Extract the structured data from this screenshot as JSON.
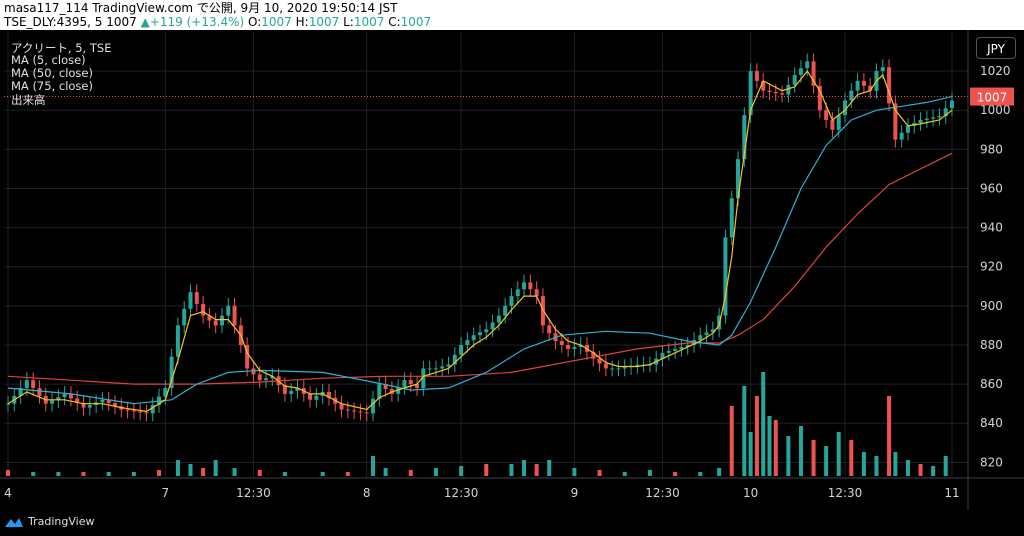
{
  "header": {
    "line1": "masa117_114 TradingView.com で公開, 9月 10, 2020 19:50:14 JST",
    "ticker": "TSE_DLY:4395, 5 1007",
    "change": "▲+119 (+13.4%)",
    "o_label": "O:",
    "o_val": "1007",
    "h_label": "H:",
    "h_val": "1007",
    "l_label": "L:",
    "l_val": "1007",
    "c_label": "C:",
    "c_val": "1007"
  },
  "overlay": {
    "title": "アクリート, 5, TSE",
    "ma5": "MA (5, close)",
    "ma50": "MA (50, close)",
    "ma75": "MA (75, close)",
    "volume": "出来高"
  },
  "currency_button": "JPY",
  "footer": {
    "brand": "TradingView"
  },
  "colors": {
    "up": "#26a69a",
    "down": "#ef5350",
    "ma5": "#f5c518",
    "ma50": "#2bb3d6",
    "ma75": "#e0433a",
    "grid": "#1e2129"
  },
  "chart_data": {
    "type": "candlestick",
    "interval": "5 min",
    "yrange": [
      812,
      1040
    ],
    "y_ticks": [
      820,
      840,
      860,
      880,
      900,
      920,
      940,
      960,
      980,
      1000,
      1020
    ],
    "x_ticks": [
      "4",
      "7",
      "12:30",
      "8",
      "12:30",
      "9",
      "12:30",
      "10",
      "12:30",
      "11"
    ],
    "last_price": "1007",
    "last_price_value": 1007,
    "price_path": [
      [
        0,
        850
      ],
      [
        3,
        862
      ],
      [
        6,
        850
      ],
      [
        9,
        855
      ],
      [
        12,
        848
      ],
      [
        15,
        852
      ],
      [
        18,
        847
      ],
      [
        22,
        845
      ],
      [
        25,
        858
      ],
      [
        27,
        890
      ],
      [
        29,
        907
      ],
      [
        31,
        895
      ],
      [
        33,
        890
      ],
      [
        35,
        900
      ],
      [
        37,
        880
      ],
      [
        38,
        868
      ],
      [
        40,
        862
      ],
      [
        42,
        864
      ],
      [
        44,
        855
      ],
      [
        46,
        858
      ],
      [
        48,
        852
      ],
      [
        50,
        856
      ],
      [
        53,
        847
      ],
      [
        57,
        845
      ],
      [
        59,
        860
      ],
      [
        61,
        855
      ],
      [
        63,
        862
      ],
      [
        65,
        858
      ],
      [
        66,
        868
      ],
      [
        68,
        868
      ],
      [
        70,
        870
      ],
      [
        72,
        880
      ],
      [
        74,
        885
      ],
      [
        76,
        888
      ],
      [
        78,
        895
      ],
      [
        80,
        905
      ],
      [
        82,
        912
      ],
      [
        84,
        905
      ],
      [
        85,
        890
      ],
      [
        87,
        882
      ],
      [
        89,
        878
      ],
      [
        91,
        880
      ],
      [
        93,
        873
      ],
      [
        95,
        868
      ],
      [
        97,
        868
      ],
      [
        100,
        870
      ],
      [
        102,
        870
      ],
      [
        104,
        876
      ],
      [
        106,
        878
      ],
      [
        108,
        880
      ],
      [
        110,
        885
      ],
      [
        112,
        888
      ],
      [
        113,
        895
      ],
      [
        114,
        935
      ],
      [
        115,
        955
      ],
      [
        116,
        975
      ],
      [
        118,
        1020
      ],
      [
        120,
        1010
      ],
      [
        123,
        1008
      ],
      [
        125,
        1018
      ],
      [
        127,
        1025
      ],
      [
        129,
        1000
      ],
      [
        131,
        990
      ],
      [
        133,
        1005
      ],
      [
        135,
        1015
      ],
      [
        137,
        1010
      ],
      [
        138,
        1020
      ],
      [
        139,
        1022
      ],
      [
        141,
        985
      ],
      [
        143,
        992
      ],
      [
        145,
        995
      ],
      [
        148,
        997
      ],
      [
        150,
        1005
      ]
    ],
    "ma5_path": [
      [
        0,
        850
      ],
      [
        3,
        856
      ],
      [
        6,
        852
      ],
      [
        9,
        852
      ],
      [
        12,
        850
      ],
      [
        15,
        850
      ],
      [
        18,
        848
      ],
      [
        22,
        846
      ],
      [
        25,
        852
      ],
      [
        27,
        872
      ],
      [
        29,
        895
      ],
      [
        31,
        897
      ],
      [
        33,
        893
      ],
      [
        35,
        893
      ],
      [
        37,
        885
      ],
      [
        38,
        876
      ],
      [
        40,
        867
      ],
      [
        42,
        864
      ],
      [
        44,
        859
      ],
      [
        46,
        858
      ],
      [
        48,
        855
      ],
      [
        50,
        855
      ],
      [
        53,
        850
      ],
      [
        57,
        847
      ],
      [
        59,
        853
      ],
      [
        61,
        856
      ],
      [
        63,
        858
      ],
      [
        65,
        860
      ],
      [
        66,
        864
      ],
      [
        68,
        866
      ],
      [
        70,
        868
      ],
      [
        72,
        874
      ],
      [
        74,
        880
      ],
      [
        76,
        884
      ],
      [
        78,
        890
      ],
      [
        80,
        898
      ],
      [
        82,
        905
      ],
      [
        84,
        905
      ],
      [
        85,
        898
      ],
      [
        87,
        888
      ],
      [
        89,
        882
      ],
      [
        91,
        880
      ],
      [
        93,
        876
      ],
      [
        95,
        871
      ],
      [
        97,
        869
      ],
      [
        100,
        869
      ],
      [
        102,
        870
      ],
      [
        104,
        873
      ],
      [
        106,
        876
      ],
      [
        108,
        879
      ],
      [
        110,
        882
      ],
      [
        112,
        886
      ],
      [
        113,
        890
      ],
      [
        114,
        905
      ],
      [
        115,
        925
      ],
      [
        116,
        955
      ],
      [
        118,
        1000
      ],
      [
        120,
        1015
      ],
      [
        123,
        1010
      ],
      [
        125,
        1012
      ],
      [
        127,
        1020
      ],
      [
        129,
        1010
      ],
      [
        131,
        995
      ],
      [
        133,
        1000
      ],
      [
        135,
        1008
      ],
      [
        137,
        1010
      ],
      [
        138,
        1015
      ],
      [
        139,
        1018
      ],
      [
        141,
        1000
      ],
      [
        143,
        992
      ],
      [
        145,
        993
      ],
      [
        148,
        995
      ],
      [
        150,
        1000
      ]
    ],
    "ma50_path": [
      [
        0,
        858
      ],
      [
        10,
        855
      ],
      [
        20,
        850
      ],
      [
        26,
        852
      ],
      [
        30,
        860
      ],
      [
        35,
        866
      ],
      [
        40,
        867
      ],
      [
        50,
        866
      ],
      [
        58,
        861
      ],
      [
        64,
        857
      ],
      [
        70,
        858
      ],
      [
        76,
        866
      ],
      [
        82,
        878
      ],
      [
        88,
        885
      ],
      [
        95,
        887
      ],
      [
        102,
        886
      ],
      [
        108,
        882
      ],
      [
        113,
        880
      ],
      [
        115,
        885
      ],
      [
        118,
        902
      ],
      [
        122,
        930
      ],
      [
        126,
        960
      ],
      [
        130,
        982
      ],
      [
        134,
        995
      ],
      [
        138,
        1000
      ],
      [
        142,
        1002
      ],
      [
        146,
        1004
      ],
      [
        150,
        1007
      ]
    ],
    "ma75_path": [
      [
        0,
        864
      ],
      [
        10,
        862
      ],
      [
        20,
        860
      ],
      [
        30,
        860
      ],
      [
        40,
        861
      ],
      [
        50,
        863
      ],
      [
        60,
        864
      ],
      [
        70,
        864
      ],
      [
        80,
        866
      ],
      [
        90,
        872
      ],
      [
        100,
        878
      ],
      [
        108,
        881
      ],
      [
        113,
        881
      ],
      [
        116,
        885
      ],
      [
        120,
        893
      ],
      [
        125,
        910
      ],
      [
        130,
        930
      ],
      [
        135,
        947
      ],
      [
        140,
        962
      ],
      [
        145,
        970
      ],
      [
        150,
        978
      ]
    ],
    "volume_bars": [
      [
        0,
        3
      ],
      [
        4,
        2
      ],
      [
        8,
        2
      ],
      [
        12,
        2
      ],
      [
        16,
        2
      ],
      [
        20,
        2
      ],
      [
        24,
        3
      ],
      [
        27,
        8
      ],
      [
        29,
        6
      ],
      [
        31,
        4
      ],
      [
        33,
        8
      ],
      [
        36,
        4
      ],
      [
        40,
        3
      ],
      [
        44,
        2
      ],
      [
        50,
        2
      ],
      [
        54,
        2
      ],
      [
        58,
        10
      ],
      [
        60,
        4
      ],
      [
        64,
        3
      ],
      [
        68,
        4
      ],
      [
        72,
        5
      ],
      [
        76,
        6
      ],
      [
        80,
        6
      ],
      [
        82,
        8
      ],
      [
        84,
        6
      ],
      [
        86,
        8
      ],
      [
        90,
        4
      ],
      [
        94,
        3
      ],
      [
        98,
        2
      ],
      [
        102,
        3
      ],
      [
        106,
        2
      ],
      [
        110,
        2
      ],
      [
        113,
        4
      ],
      [
        115,
        35
      ],
      [
        117,
        45
      ],
      [
        118,
        22
      ],
      [
        119,
        40
      ],
      [
        120,
        52
      ],
      [
        121,
        30
      ],
      [
        122,
        28
      ],
      [
        124,
        20
      ],
      [
        126,
        25
      ],
      [
        128,
        18
      ],
      [
        130,
        15
      ],
      [
        132,
        22
      ],
      [
        134,
        18
      ],
      [
        136,
        12
      ],
      [
        138,
        10
      ],
      [
        140,
        40
      ],
      [
        141,
        12
      ],
      [
        143,
        8
      ],
      [
        145,
        6
      ],
      [
        147,
        5
      ],
      [
        149,
        10
      ]
    ]
  }
}
